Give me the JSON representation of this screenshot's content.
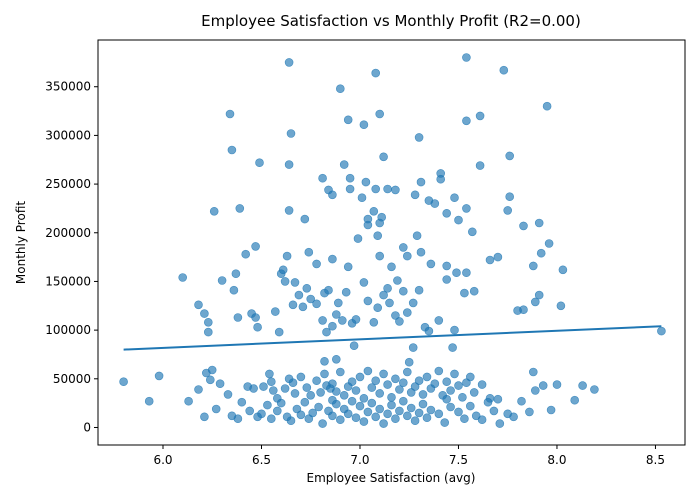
{
  "chart_data": {
    "type": "scatter",
    "title": "Employee Satisfaction vs Monthly Profit (R2=0.00)",
    "xlabel": "Employee Satisfaction (avg)",
    "ylabel": "Monthly Profit",
    "xlim": [
      5.67,
      8.65
    ],
    "ylim": [
      -18000,
      398000
    ],
    "xticks": [
      6.0,
      6.5,
      7.0,
      7.5,
      8.0,
      8.5
    ],
    "xtick_labels": [
      "6.0",
      "6.5",
      "7.0",
      "7.5",
      "8.0",
      "8.5"
    ],
    "yticks": [
      0,
      50000,
      100000,
      150000,
      200000,
      250000,
      300000,
      350000
    ],
    "ytick_labels": [
      "0",
      "50000",
      "100000",
      "150000",
      "200000",
      "250000",
      "300000",
      "350000"
    ],
    "grid": false,
    "point_color": "#1f77b4",
    "line_color": "#1f77b4",
    "trendline": {
      "x": [
        5.8,
        8.53
      ],
      "y": [
        80000,
        104000
      ]
    },
    "series": [
      {
        "points": [
          [
            6.64,
            375000
          ],
          [
            7.08,
            364000
          ],
          [
            6.9,
            348000
          ],
          [
            7.54,
            380000
          ],
          [
            7.73,
            367000
          ],
          [
            6.34,
            322000
          ],
          [
            7.1,
            322000
          ],
          [
            6.94,
            316000
          ],
          [
            7.02,
            311000
          ],
          [
            6.65,
            302000
          ],
          [
            7.3,
            298000
          ],
          [
            7.54,
            315000
          ],
          [
            7.61,
            320000
          ],
          [
            7.95,
            330000
          ],
          [
            6.35,
            285000
          ],
          [
            6.49,
            272000
          ],
          [
            6.64,
            270000
          ],
          [
            6.92,
            270000
          ],
          [
            7.12,
            278000
          ],
          [
            7.61,
            269000
          ],
          [
            7.76,
            279000
          ],
          [
            6.81,
            256000
          ],
          [
            6.95,
            256000
          ],
          [
            7.03,
            252000
          ],
          [
            7.08,
            245000
          ],
          [
            7.14,
            245000
          ],
          [
            7.18,
            244000
          ],
          [
            7.28,
            239000
          ],
          [
            7.31,
            252000
          ],
          [
            7.41,
            261000
          ],
          [
            7.76,
            237000
          ],
          [
            6.26,
            222000
          ],
          [
            6.39,
            225000
          ],
          [
            6.64,
            223000
          ],
          [
            6.72,
            214000
          ],
          [
            6.84,
            244000
          ],
          [
            6.86,
            239000
          ],
          [
            6.95,
            245000
          ],
          [
            7.01,
            236000
          ],
          [
            7.04,
            214000
          ],
          [
            7.07,
            222000
          ],
          [
            7.1,
            210000
          ],
          [
            7.11,
            216000
          ],
          [
            7.35,
            233000
          ],
          [
            7.38,
            230000
          ],
          [
            7.41,
            255000
          ],
          [
            7.44,
            220000
          ],
          [
            7.48,
            236000
          ],
          [
            7.5,
            213000
          ],
          [
            7.54,
            225000
          ],
          [
            7.57,
            201000
          ],
          [
            7.75,
            223000
          ],
          [
            7.83,
            207000
          ],
          [
            7.91,
            210000
          ],
          [
            6.42,
            178000
          ],
          [
            6.47,
            186000
          ],
          [
            6.6,
            158000
          ],
          [
            6.61,
            162000
          ],
          [
            6.63,
            176000
          ],
          [
            6.67,
            149000
          ],
          [
            6.74,
            180000
          ],
          [
            6.78,
            168000
          ],
          [
            6.86,
            173000
          ],
          [
            6.94,
            165000
          ],
          [
            6.99,
            194000
          ],
          [
            7.04,
            208000
          ],
          [
            7.09,
            197000
          ],
          [
            7.1,
            176000
          ],
          [
            7.16,
            165000
          ],
          [
            7.19,
            151000
          ],
          [
            7.22,
            185000
          ],
          [
            7.24,
            176000
          ],
          [
            7.29,
            197000
          ],
          [
            7.31,
            180000
          ],
          [
            7.36,
            168000
          ],
          [
            7.44,
            166000
          ],
          [
            7.49,
            159000
          ],
          [
            7.54,
            159000
          ],
          [
            7.58,
            140000
          ],
          [
            7.66,
            172000
          ],
          [
            7.7,
            175000
          ],
          [
            7.88,
            166000
          ],
          [
            7.92,
            179000
          ],
          [
            7.96,
            189000
          ],
          [
            8.03,
            162000
          ],
          [
            6.1,
            154000
          ],
          [
            6.18,
            126000
          ],
          [
            6.21,
            117000
          ],
          [
            6.23,
            108000
          ],
          [
            6.23,
            98000
          ],
          [
            6.3,
            151000
          ],
          [
            6.36,
            141000
          ],
          [
            6.37,
            158000
          ],
          [
            6.38,
            113000
          ],
          [
            6.45,
            117000
          ],
          [
            6.47,
            113000
          ],
          [
            6.48,
            103000
          ],
          [
            6.57,
            119000
          ],
          [
            6.59,
            98000
          ],
          [
            6.62,
            150000
          ],
          [
            6.66,
            126000
          ],
          [
            6.69,
            136000
          ],
          [
            6.71,
            124000
          ],
          [
            6.73,
            143000
          ],
          [
            6.75,
            132000
          ],
          [
            6.78,
            127000
          ],
          [
            6.81,
            110000
          ],
          [
            6.82,
            138000
          ],
          [
            6.83,
            98000
          ],
          [
            6.84,
            141000
          ],
          [
            6.86,
            104000
          ],
          [
            6.88,
            116000
          ],
          [
            6.89,
            128000
          ],
          [
            6.91,
            110000
          ],
          [
            6.93,
            139000
          ],
          [
            6.96,
            107000
          ],
          [
            6.98,
            111000
          ],
          [
            7.02,
            149000
          ],
          [
            7.04,
            130000
          ],
          [
            7.07,
            108000
          ],
          [
            7.09,
            123000
          ],
          [
            7.12,
            136000
          ],
          [
            7.14,
            143000
          ],
          [
            7.15,
            128000
          ],
          [
            7.18,
            115000
          ],
          [
            7.2,
            109000
          ],
          [
            7.22,
            140000
          ],
          [
            7.24,
            118000
          ],
          [
            7.27,
            128000
          ],
          [
            7.3,
            141000
          ],
          [
            7.33,
            103000
          ],
          [
            7.35,
            99000
          ],
          [
            7.4,
            110000
          ],
          [
            7.44,
            152000
          ],
          [
            7.48,
            100000
          ],
          [
            7.53,
            138000
          ],
          [
            7.8,
            120000
          ],
          [
            7.83,
            121000
          ],
          [
            7.89,
            129000
          ],
          [
            7.91,
            136000
          ],
          [
            8.02,
            125000
          ],
          [
            8.53,
            99000
          ],
          [
            6.97,
            84000
          ],
          [
            7.27,
            82000
          ],
          [
            7.47,
            82000
          ],
          [
            6.88,
            70000
          ],
          [
            7.25,
            67000
          ],
          [
            6.82,
            68000
          ],
          [
            6.22,
            56000
          ],
          [
            6.24,
            49000
          ],
          [
            6.25,
            59000
          ],
          [
            6.29,
            45000
          ],
          [
            6.33,
            34000
          ],
          [
            6.43,
            42000
          ],
          [
            6.46,
            40000
          ],
          [
            6.51,
            42000
          ],
          [
            6.54,
            55000
          ],
          [
            6.55,
            47000
          ],
          [
            6.56,
            38000
          ],
          [
            6.58,
            30000
          ],
          [
            6.62,
            40000
          ],
          [
            6.64,
            50000
          ],
          [
            6.66,
            46000
          ],
          [
            6.67,
            35000
          ],
          [
            6.7,
            52000
          ],
          [
            6.73,
            41000
          ],
          [
            6.75,
            33000
          ],
          [
            6.78,
            48000
          ],
          [
            6.8,
            36000
          ],
          [
            6.82,
            55000
          ],
          [
            6.83,
            43000
          ],
          [
            6.85,
            40000
          ],
          [
            6.86,
            45000
          ],
          [
            6.88,
            37000
          ],
          [
            6.9,
            57000
          ],
          [
            6.92,
            33000
          ],
          [
            6.94,
            42000
          ],
          [
            6.96,
            47000
          ],
          [
            6.98,
            38000
          ],
          [
            7.0,
            52000
          ],
          [
            7.02,
            30000
          ],
          [
            7.04,
            58000
          ],
          [
            7.06,
            41000
          ],
          [
            7.08,
            48000
          ],
          [
            7.1,
            35000
          ],
          [
            7.12,
            55000
          ],
          [
            7.14,
            44000
          ],
          [
            7.16,
            31000
          ],
          [
            7.18,
            50000
          ],
          [
            7.2,
            39000
          ],
          [
            7.22,
            46000
          ],
          [
            7.24,
            57000
          ],
          [
            7.26,
            36000
          ],
          [
            7.28,
            42000
          ],
          [
            7.3,
            48000
          ],
          [
            7.32,
            34000
          ],
          [
            7.34,
            52000
          ],
          [
            7.36,
            40000
          ],
          [
            7.38,
            45000
          ],
          [
            7.4,
            58000
          ],
          [
            7.42,
            33000
          ],
          [
            7.44,
            47000
          ],
          [
            7.46,
            38000
          ],
          [
            7.48,
            55000
          ],
          [
            7.5,
            43000
          ],
          [
            7.52,
            31000
          ],
          [
            7.54,
            46000
          ],
          [
            7.56,
            52000
          ],
          [
            7.58,
            36000
          ],
          [
            7.62,
            44000
          ],
          [
            7.66,
            30000
          ],
          [
            7.7,
            29000
          ],
          [
            7.88,
            57000
          ],
          [
            7.89,
            38000
          ],
          [
            7.93,
            43000
          ],
          [
            8.0,
            44000
          ],
          [
            8.13,
            43000
          ],
          [
            8.19,
            39000
          ],
          [
            5.8,
            47000
          ],
          [
            5.98,
            53000
          ],
          [
            6.18,
            39000
          ],
          [
            6.13,
            27000
          ],
          [
            5.93,
            27000
          ],
          [
            6.21,
            11000
          ],
          [
            6.27,
            19000
          ],
          [
            6.35,
            12000
          ],
          [
            6.38,
            9000
          ],
          [
            6.4,
            26000
          ],
          [
            6.44,
            17000
          ],
          [
            6.48,
            11000
          ],
          [
            6.5,
            14000
          ],
          [
            6.53,
            23000
          ],
          [
            6.55,
            9000
          ],
          [
            6.58,
            17000
          ],
          [
            6.6,
            25000
          ],
          [
            6.63,
            11000
          ],
          [
            6.65,
            7000
          ],
          [
            6.68,
            19000
          ],
          [
            6.7,
            13000
          ],
          [
            6.72,
            26000
          ],
          [
            6.74,
            9000
          ],
          [
            6.76,
            15000
          ],
          [
            6.79,
            21000
          ],
          [
            6.81,
            4000
          ],
          [
            6.84,
            17000
          ],
          [
            6.86,
            12000
          ],
          [
            6.88,
            24000
          ],
          [
            6.9,
            8000
          ],
          [
            6.92,
            19000
          ],
          [
            6.94,
            14000
          ],
          [
            6.96,
            27000
          ],
          [
            6.98,
            10000
          ],
          [
            7.0,
            22000
          ],
          [
            7.02,
            6000
          ],
          [
            7.04,
            16000
          ],
          [
            7.06,
            25000
          ],
          [
            7.08,
            11000
          ],
          [
            7.1,
            19000
          ],
          [
            7.12,
            4000
          ],
          [
            7.14,
            14000
          ],
          [
            7.16,
            23000
          ],
          [
            7.18,
            9000
          ],
          [
            7.2,
            17000
          ],
          [
            7.22,
            27000
          ],
          [
            7.24,
            12000
          ],
          [
            7.26,
            20000
          ],
          [
            7.28,
            7000
          ],
          [
            7.3,
            15000
          ],
          [
            7.32,
            24000
          ],
          [
            7.34,
            10000
          ],
          [
            7.36,
            18000
          ],
          [
            7.4,
            14000
          ],
          [
            7.43,
            5000
          ],
          [
            7.46,
            21000
          ],
          [
            7.5,
            16000
          ],
          [
            7.53,
            9000
          ],
          [
            7.56,
            22000
          ],
          [
            7.59,
            12000
          ],
          [
            7.62,
            8000
          ],
          [
            7.65,
            26000
          ],
          [
            7.68,
            17000
          ],
          [
            7.71,
            4000
          ],
          [
            7.75,
            14000
          ],
          [
            7.78,
            11000
          ],
          [
            7.82,
            27000
          ],
          [
            7.86,
            16000
          ],
          [
            7.97,
            18000
          ],
          [
            8.09,
            28000
          ],
          [
            6.86,
            28000
          ],
          [
            7.44,
            29000
          ]
        ]
      }
    ]
  }
}
